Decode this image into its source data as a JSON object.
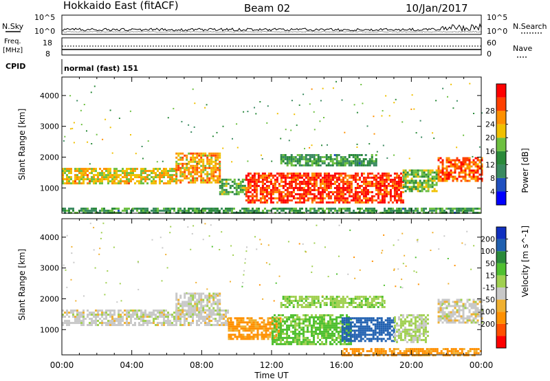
{
  "header": {
    "station": "Hokkaido East (fitACF)",
    "beam": "Beam 02",
    "date": "10/Jan/2017"
  },
  "noise_panel": {
    "left_label": "N.Sky",
    "right_label": "N.Search",
    "ticks": [
      "10^5",
      "10^0"
    ]
  },
  "freq_panel": {
    "left_label_1": "Freq.",
    "left_label_2": "[MHz]",
    "left_ticks": [
      "18",
      "8"
    ],
    "right_label": "Nave",
    "right_ticks": [
      "60",
      "0"
    ]
  },
  "cpid": {
    "label": "CPID",
    "value": "normal (fast) 151"
  },
  "colors": {
    "power": [
      "#0000ff",
      "#2050c0",
      "#3a8a60",
      "#2a8a3a",
      "#6dc040",
      "#f0c000",
      "#ff9000",
      "#ff4000",
      "#ff0000"
    ],
    "velocity": [
      "#ff0000",
      "#ff5000",
      "#ff9000",
      "#f0b030",
      "#c8c8c8",
      "#a0d050",
      "#50c030",
      "#2a8a3a",
      "#2060b0",
      "#1030c0"
    ]
  },
  "chart_data": [
    {
      "type": "heatmap",
      "name": "power",
      "ylabel": "Slant Range [km]",
      "xlabel": "Time UT",
      "x_ticks": [
        "00:00",
        "04:00",
        "08:00",
        "12:00",
        "16:00",
        "20:00",
        "00:00"
      ],
      "xlim_hours": [
        0,
        24
      ],
      "y_ticks": [
        "1000",
        "2000",
        "3000",
        "4000"
      ],
      "ylim_km": [
        180,
        4600
      ],
      "colorbar_label": "Power [dB]",
      "colorbar_ticks": [
        "4",
        "8",
        "12",
        "16",
        "20",
        "24",
        "28"
      ],
      "colorbar_range": [
        0,
        32
      ],
      "regions": [
        {
          "t0": 0.0,
          "t1": 6.5,
          "r0": 1150,
          "r1": 1650,
          "level": 20
        },
        {
          "t0": 6.5,
          "t1": 9.0,
          "r0": 1150,
          "r1": 2150,
          "level": 22
        },
        {
          "t0": 9.0,
          "t1": 10.5,
          "r0": 800,
          "r1": 1300,
          "level": 14
        },
        {
          "t0": 10.5,
          "t1": 19.5,
          "r0": 500,
          "r1": 1500,
          "level": 28
        },
        {
          "t0": 12.5,
          "t1": 18.0,
          "r0": 1700,
          "r1": 2100,
          "level": 12
        },
        {
          "t0": 19.5,
          "t1": 21.5,
          "r0": 900,
          "r1": 1600,
          "level": 16
        },
        {
          "t0": 21.5,
          "t1": 24.0,
          "r0": 1200,
          "r1": 2000,
          "level": 26
        },
        {
          "t0": 0.0,
          "t1": 24.0,
          "r0": 180,
          "r1": 360,
          "level": 12
        }
      ]
    },
    {
      "type": "heatmap",
      "name": "velocity",
      "ylabel": "Slant Range [km]",
      "xlabel": "Time UT",
      "x_ticks": [
        "00:00",
        "04:00",
        "08:00",
        "12:00",
        "16:00",
        "20:00",
        "00:00"
      ],
      "xlim_hours": [
        0,
        24
      ],
      "y_ticks": [
        "1000",
        "2000",
        "3000",
        "4000"
      ],
      "ylim_km": [
        180,
        4600
      ],
      "colorbar_label": "Velocity [m s^-1]",
      "colorbar_ticks": [
        "200",
        "100",
        "50",
        "15",
        "-15",
        "-50",
        "-100",
        "-200"
      ],
      "regions": [
        {
          "t0": 0.0,
          "t1": 9.5,
          "r0": 1150,
          "r1": 1650,
          "level": 0
        },
        {
          "t0": 6.5,
          "t1": 9.0,
          "r0": 1500,
          "r1": 2200,
          "level": 0
        },
        {
          "t0": 9.5,
          "t1": 12.5,
          "r0": 700,
          "r1": 1400,
          "level": -60
        },
        {
          "t0": 12.0,
          "t1": 16.5,
          "r0": 500,
          "r1": 1500,
          "level": 60
        },
        {
          "t0": 16.0,
          "t1": 19.0,
          "r0": 600,
          "r1": 1400,
          "level": 220
        },
        {
          "t0": 12.5,
          "t1": 18.5,
          "r0": 1700,
          "r1": 2100,
          "level": 40
        },
        {
          "t0": 19.0,
          "t1": 21.0,
          "r0": 600,
          "r1": 1500,
          "level": 20
        },
        {
          "t0": 21.5,
          "t1": 24.0,
          "r0": 1200,
          "r1": 2000,
          "level": 0
        },
        {
          "t0": 16.0,
          "t1": 24.0,
          "r0": 180,
          "r1": 400,
          "level": -60
        }
      ]
    }
  ]
}
